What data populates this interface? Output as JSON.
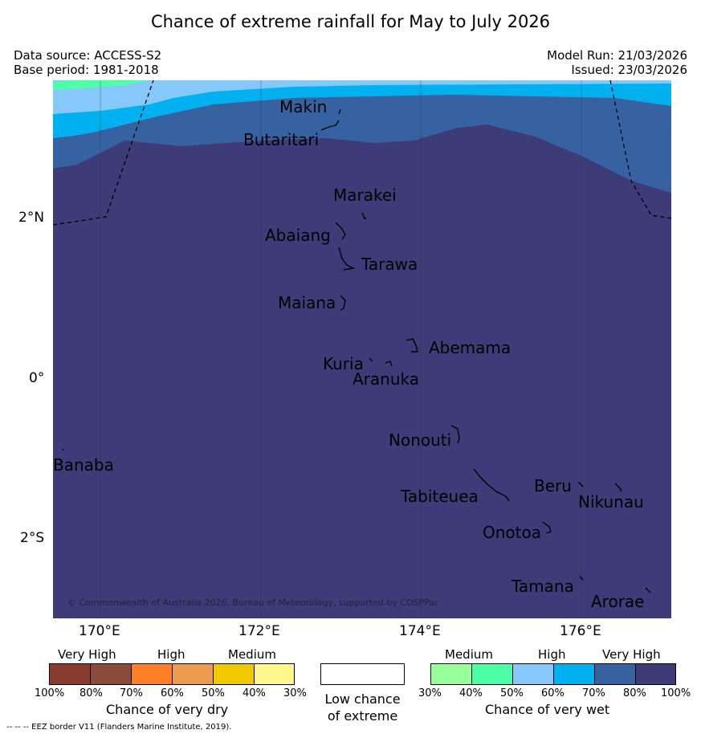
{
  "title": "Chance of extreme rainfall for May to July 2026",
  "data_source": "Data source: ACCESS-S2",
  "base_period": "Base period: 1981-2018",
  "model_run": "Model Run: 21/03/2026",
  "issued": "Issued: 23/03/2026",
  "map": {
    "lat_labels": [
      "2°N",
      "0°",
      "2°S"
    ],
    "lon_labels": [
      "170°E",
      "172°E",
      "174°E",
      "176°E"
    ],
    "places": [
      "Makin",
      "Butaritari",
      "Marakei",
      "Abaiang",
      "Tarawa",
      "Maiana",
      "Abemama",
      "Kuria",
      "Aranuka",
      "Nonouti",
      "Banaba",
      "Beru",
      "Nikunau",
      "Tabiteuea",
      "Onotoa",
      "Tamana",
      "Arorae"
    ],
    "copyright": "© Commonwealth of Australia 2026, Bureau of Meteorology, supported by COSPPac"
  },
  "colors": {
    "dry_100_80": "#8b3a2f",
    "dry_80_70": "#8c4b3a",
    "dry_70_60": "#ff7f27",
    "dry_60_50": "#ee9a4d",
    "dry_50_40": "#efc800",
    "dry_40_30": "#fff78c",
    "wet_30_40": "#99ff99",
    "wet_40_50": "#4dffa6",
    "wet_50_60": "#86c8f9",
    "wet_60_70": "#00b0ef",
    "wet_70_80": "#3762a2",
    "wet_80_100": "#3d3b78"
  },
  "legend": {
    "dry_categories": [
      "Very High",
      "High",
      "Medium"
    ],
    "dry_ticks": [
      "100%",
      "80%",
      "70%",
      "60%",
      "50%",
      "40%",
      "30%"
    ],
    "dry_title": "Chance of very dry",
    "low_line1": "Low chance",
    "low_line2": "of extreme",
    "wet_categories": [
      "Medium",
      "High",
      "Very High"
    ],
    "wet_ticks": [
      "30%",
      "40%",
      "50%",
      "60%",
      "70%",
      "80%",
      "100%"
    ],
    "wet_title": "Chance of very wet"
  },
  "footer": "--  --  -- EEZ border V11 (Flanders Marine Institute, 2019)."
}
